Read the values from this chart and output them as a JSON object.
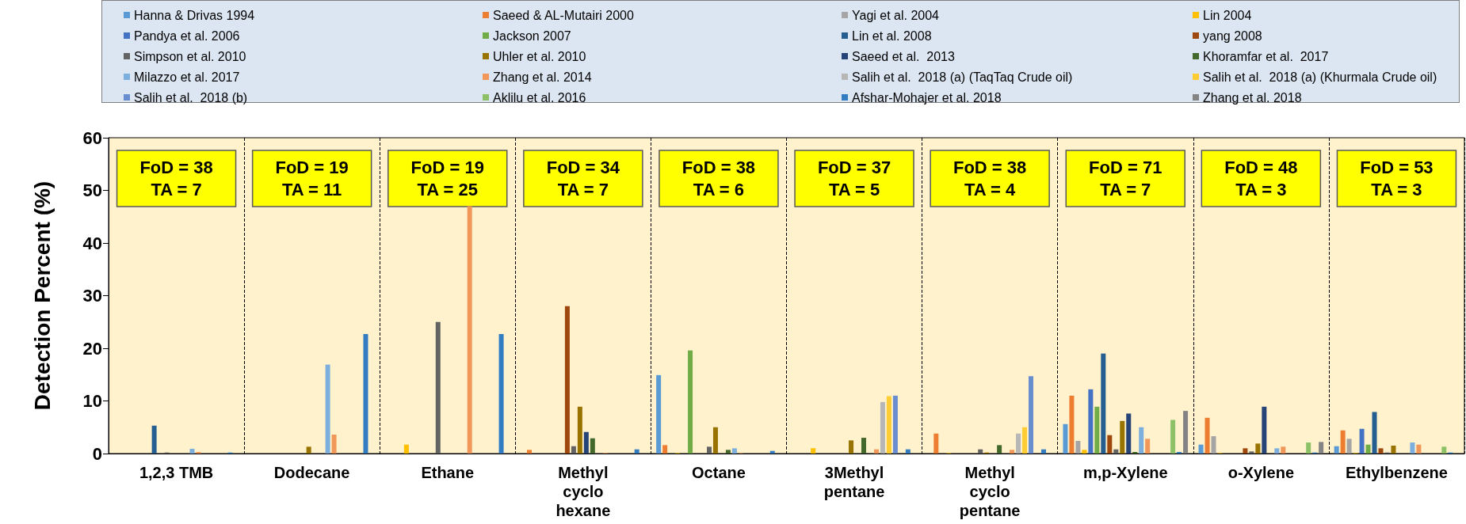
{
  "chart_data": {
    "type": "bar",
    "ylabel": "Detection Percent (%)",
    "categories": [
      "1,2,3 TMB",
      "Dodecane",
      "Ethane",
      "Methyl\ncyclo\nhexane",
      "Octane",
      "3Methyl\npentane",
      "Methyl\ncyclo\npentane",
      "m,p-Xylene",
      "o-Xylene",
      "Ethylbenzene"
    ],
    "ylim": [
      0,
      60
    ],
    "yticks": [
      0,
      10,
      20,
      30,
      40,
      50,
      60
    ],
    "grid": "x",
    "legend": "top",
    "annotations": [
      "FoD = 38\nTA = 7",
      "FoD = 19\nTA = 11",
      "FoD = 19\nTA = 25",
      "FoD = 34\nTA = 7",
      "FoD = 38\nTA = 6",
      "FoD = 37\nTA = 5",
      "FoD = 38\nTA = 4",
      "FoD = 71\nTA = 7",
      "FoD = 48\nTA = 3",
      "FoD = 53\nTA = 3"
    ],
    "series": [
      {
        "name": "Hanna & Drivas 1994",
        "color": "#5b9bd5",
        "values": [
          null,
          null,
          null,
          null,
          14.9,
          null,
          null,
          5.6,
          1.7,
          1.4
        ]
      },
      {
        "name": "Saeed & AL-Mutairi 2000",
        "color": "#ed7d31",
        "values": [
          null,
          null,
          null,
          0.7,
          1.6,
          null,
          3.8,
          11,
          6.8,
          4.4
        ]
      },
      {
        "name": "Yagi et al. 2004",
        "color": "#a5a5a5",
        "values": [
          null,
          null,
          null,
          null,
          null,
          null,
          null,
          2.4,
          3.3,
          2.8
        ]
      },
      {
        "name": "Lin 2004",
        "color": "#ffc000",
        "values": [
          null,
          null,
          1.7,
          null,
          0.1,
          1,
          0.1,
          0.7,
          0.1,
          0.1
        ]
      },
      {
        "name": "Pandya et al. 2006",
        "color": "#4472c4",
        "values": [
          null,
          null,
          null,
          null,
          null,
          null,
          null,
          12.2,
          null,
          4.7
        ]
      },
      {
        "name": "Jackson 2007",
        "color": "#70ad47",
        "values": [
          null,
          null,
          null,
          null,
          19.6,
          null,
          null,
          8.9,
          null,
          1.7
        ]
      },
      {
        "name": "Lin et al. 2008",
        "color": "#255e91",
        "values": [
          5.3,
          null,
          null,
          null,
          null,
          null,
          null,
          19,
          null,
          7.9
        ]
      },
      {
        "name": "yang 2008",
        "color": "#9e480e",
        "values": [
          null,
          null,
          null,
          28,
          null,
          null,
          null,
          3.5,
          1,
          1
        ]
      },
      {
        "name": "Simpson et al. 2010",
        "color": "#636363",
        "values": [
          0.2,
          null,
          25,
          1.4,
          1.3,
          null,
          0.8,
          0.8,
          0.4,
          0.2
        ]
      },
      {
        "name": "Uhler et al. 2010",
        "color": "#997300",
        "values": [
          null,
          1.3,
          null,
          8.9,
          5,
          2.5,
          0.2,
          6.2,
          1.9,
          1.5
        ]
      },
      {
        "name": "Saeed et al.  2013",
        "color": "#264478",
        "values": [
          null,
          null,
          null,
          4.1,
          null,
          null,
          null,
          7.6,
          8.9,
          null
        ]
      },
      {
        "name": "Khoramfar et al.  2017",
        "color": "#43682b",
        "values": [
          null,
          null,
          null,
          2.9,
          0.7,
          3,
          1.6,
          0.3,
          null,
          null
        ]
      },
      {
        "name": "Milazzo et al. 2017",
        "color": "#7cafdd",
        "values": [
          0.9,
          16.9,
          null,
          null,
          1,
          null,
          null,
          5,
          1,
          2.1
        ]
      },
      {
        "name": "Zhang et al. 2014",
        "color": "#f1975a",
        "values": [
          0.3,
          3.6,
          47,
          0.1,
          0.1,
          0.8,
          0.7,
          2.8,
          1.3,
          1.7
        ]
      },
      {
        "name": "Salih et al.  2018 (a) (TaqTaq Crude oil)",
        "color": "#b7b7b7",
        "values": [
          null,
          null,
          null,
          null,
          null,
          9.8,
          3.8,
          null,
          null,
          null
        ]
      },
      {
        "name": "Salih et al.  2018 (a) (Khurmala Crude oil)",
        "color": "#ffcd33",
        "values": [
          null,
          null,
          null,
          null,
          null,
          10.9,
          5,
          null,
          null,
          null
        ]
      },
      {
        "name": "Salih et al.  2018 (b)",
        "color": "#698ed0",
        "values": [
          null,
          null,
          null,
          null,
          null,
          11,
          14.7,
          null,
          null,
          null
        ]
      },
      {
        "name": "Aklilu et al. 2016",
        "color": "#8cc168",
        "values": [
          null,
          null,
          null,
          null,
          null,
          null,
          null,
          6.4,
          2.1,
          1.3
        ]
      },
      {
        "name": "Afshar-Mohajer et al. 2018",
        "color": "#327dc2",
        "values": [
          0.2,
          22.7,
          22.7,
          0.8,
          0.5,
          0.8,
          0.8,
          0.3,
          0.2,
          0.2
        ]
      },
      {
        "name": "Zhang et al. 2018",
        "color": "#848484",
        "values": [
          null,
          null,
          null,
          null,
          null,
          null,
          null,
          8.1,
          2.2,
          null
        ]
      }
    ]
  }
}
